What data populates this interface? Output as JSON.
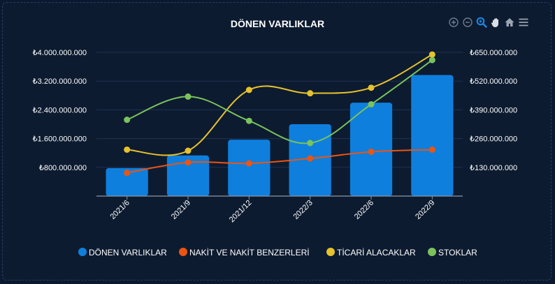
{
  "chart_data": {
    "type": "bar",
    "title": "DÖNEN VARLIKLAR",
    "categories": [
      "2021/6",
      "2021/9",
      "2021/12",
      "2022/3",
      "2022/6",
      "2022/9"
    ],
    "left_axis": {
      "ticks": [
        "₺800.000.000",
        "₺1.600.000.000",
        "₺2.400.000.000",
        "₺3.200.000.000",
        "₺4.000.000.000"
      ],
      "tick_values": [
        800000000,
        1600000000,
        2400000000,
        3200000000,
        4000000000
      ],
      "ylim": [
        0,
        4000000000
      ]
    },
    "right_axis": {
      "ticks": [
        "₺130.000.000",
        "₺260.000.000",
        "₺390.000.000",
        "₺520.000.000",
        "₺650.000.000"
      ],
      "tick_values": [
        130000000,
        260000000,
        390000000,
        520000000,
        650000000
      ],
      "ylim": [
        0,
        650000000
      ]
    },
    "grid": true,
    "legend_position": "bottom",
    "series": [
      {
        "name": "DÖNEN VARLIKLAR",
        "kind": "bar",
        "axis": "left",
        "color": "#0f7fdd",
        "values": [
          780000000,
          1130000000,
          1570000000,
          2000000000,
          2600000000,
          3370000000
        ]
      },
      {
        "name": "NAKİT VE NAKİT BENZERLERİ",
        "kind": "line",
        "axis": "right",
        "color": "#ea5513",
        "values": [
          105000000,
          152000000,
          148000000,
          170000000,
          200000000,
          210000000
        ]
      },
      {
        "name": "TİCARİ ALACAKLAR",
        "kind": "line",
        "axis": "right",
        "color": "#e6c22c",
        "values": [
          210000000,
          205000000,
          480000000,
          465000000,
          490000000,
          640000000
        ]
      },
      {
        "name": "STOKLAR",
        "kind": "line",
        "axis": "right",
        "color": "#7ac35c",
        "values": [
          345000000,
          450000000,
          340000000,
          240000000,
          415000000,
          615000000
        ]
      }
    ]
  },
  "toolbar": {
    "icons": [
      "zoom-in-icon",
      "zoom-out-icon",
      "selection-zoom-icon",
      "pan-icon",
      "reset-home-icon",
      "menu-icon"
    ],
    "accent": "#1e88e5",
    "inactive": "#6e7b8c"
  }
}
